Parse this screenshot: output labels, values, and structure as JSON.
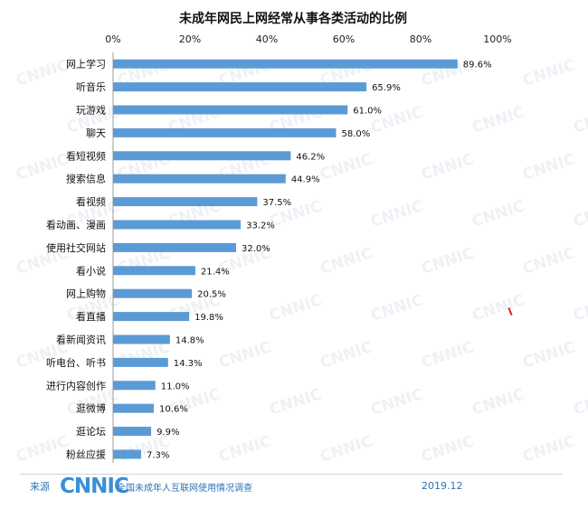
{
  "chart_data": {
    "type": "bar",
    "orientation": "horizontal",
    "title": "未成年网民上网经常从事各类活动的比例",
    "categories": [
      "网上学习",
      "听音乐",
      "玩游戏",
      "聊天",
      "看短视频",
      "搜索信息",
      "看视频",
      "看动画、漫画",
      "使用社交网站",
      "看小说",
      "网上购物",
      "看直播",
      "看新闻资讯",
      "听电台、听书",
      "进行内容创作",
      "逛微博",
      "逛论坛",
      "粉丝应援"
    ],
    "values": [
      89.6,
      65.9,
      61.0,
      58.0,
      46.2,
      44.9,
      37.5,
      33.2,
      32.0,
      21.4,
      20.5,
      19.8,
      14.8,
      14.3,
      11.0,
      10.6,
      9.9,
      7.3
    ],
    "value_labels": [
      "89.6%",
      "65.9%",
      "61.0%",
      "58.0%",
      "46.2%",
      "44.9%",
      "37.5%",
      "33.2%",
      "32.0%",
      "21.4%",
      "20.5%",
      "19.8%",
      "14.8%",
      "14.3%",
      "11.0%",
      "10.6%",
      "9.9%",
      "7.3%"
    ],
    "xlim": [
      0,
      100
    ],
    "xticks": [
      0,
      20,
      40,
      60,
      80,
      100
    ],
    "xtick_labels": [
      "0%",
      "20%",
      "40%",
      "60%",
      "80%",
      "100%"
    ],
    "bar_color": "#5b9bd5",
    "grid": false
  },
  "watermark": "CNNIC",
  "footer": {
    "source_label": "来源",
    "logo_text": "CNNIC",
    "survey_name": "全国未成年人互联网使用情况调查",
    "date": "2019.12"
  },
  "colors": {
    "accent": "#2f73b6",
    "logo": "#3a8fd6",
    "bar": "#5b9bd5"
  }
}
